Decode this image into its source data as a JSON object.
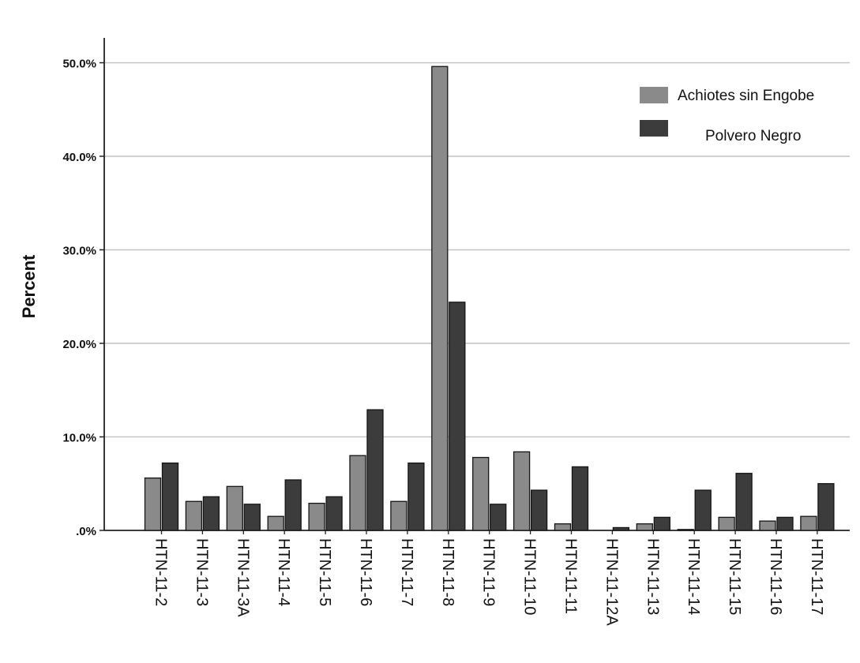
{
  "chart_data": {
    "type": "bar",
    "title": "",
    "xlabel": "",
    "ylabel": "Percent",
    "ylim": [
      0,
      0.525
    ],
    "yticks": [
      {
        "value": 0,
        "label": ".0%"
      },
      {
        "value": 0.1,
        "label": "10.0%"
      },
      {
        "value": 0.2,
        "label": "20.0%"
      },
      {
        "value": 0.3,
        "label": "30.0%"
      },
      {
        "value": 0.4,
        "label": "40.0%"
      },
      {
        "value": 0.5,
        "label": "50.0%"
      }
    ],
    "grid": true,
    "legend_position": "top-right",
    "categories": [
      "HTN-11-2",
      "HTN-11-3",
      "HTN-11-3A",
      "HTN-11-4",
      "HTN-11-5",
      "HTN-11-6",
      "HTN-11-7",
      "HTN-11-8",
      "HTN-11-9",
      "HTN-11-10",
      "HTN-11-11",
      "HTN-11-12A",
      "HTN-11-13",
      "HTN-11-14",
      "HTN-11-15",
      "HTN-11-16",
      "HTN-11-17"
    ],
    "series": [
      {
        "name": "Achiotes sin Engobe",
        "color": "#8a8a8a",
        "values": [
          0.056,
          0.031,
          0.047,
          0.015,
          0.029,
          0.08,
          0.031,
          0.496,
          0.078,
          0.084,
          0.007,
          0.0,
          0.007,
          0.001,
          0.014,
          0.01,
          0.015
        ]
      },
      {
        "name": "Polvero Negro",
        "color": "#3c3c3c",
        "values": [
          0.072,
          0.036,
          0.028,
          0.054,
          0.036,
          0.129,
          0.072,
          0.244,
          0.028,
          0.043,
          0.068,
          0.003,
          0.014,
          0.043,
          0.061,
          0.014,
          0.05
        ]
      }
    ]
  }
}
